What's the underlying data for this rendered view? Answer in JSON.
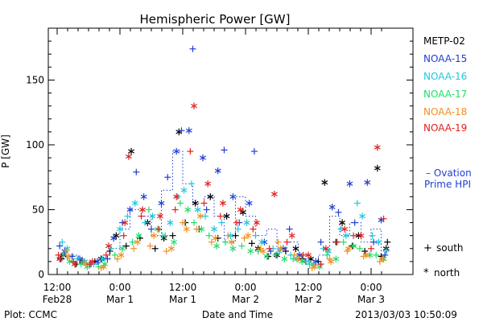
{
  "footer": {
    "left": "Plot: CCMC",
    "right": "2013/03/03 10:50:09"
  },
  "legend": {
    "ovation_line1": "– Ovation",
    "ovation_line2": "Prime HPI",
    "south_label": "south",
    "north_label": "north"
  },
  "chart_data": {
    "type": "scatter",
    "title": "Hemispheric Power [GW]",
    "xlabel": "Date and Time",
    "ylabel": "P [GW]",
    "ylim": [
      0,
      190
    ],
    "y_ticks": [
      0,
      50,
      100,
      150
    ],
    "xlim": [
      0,
      2.625
    ],
    "x_units": "days since 2013-02-28 12:00",
    "x_ticks": [
      {
        "x": 0.0,
        "time": "12:00",
        "date": "Feb28"
      },
      {
        "x": 0.5,
        "time": "0:00",
        "date": "Mar 1"
      },
      {
        "x": 1.0,
        "time": "12:00",
        "date": "Mar 1"
      },
      {
        "x": 1.5,
        "time": "0:00",
        "date": "Mar 2"
      },
      {
        "x": 2.0,
        "time": "12:00",
        "date": "Mar 2"
      },
      {
        "x": 2.5,
        "time": "0:00",
        "date": "Mar 3"
      }
    ],
    "legend_position": "right",
    "markers": {
      "south": "+",
      "north": "*"
    },
    "series": [
      {
        "name": "METP-02",
        "color": "#000000",
        "south": [
          [
            0.03,
            12
          ],
          [
            0.15,
            8
          ],
          [
            0.3,
            10
          ],
          [
            0.42,
            18
          ],
          [
            0.55,
            22
          ],
          [
            0.66,
            28
          ],
          [
            0.78,
            20
          ],
          [
            0.92,
            30
          ],
          [
            1.02,
            40
          ],
          [
            1.13,
            35
          ],
          [
            1.28,
            28
          ],
          [
            1.42,
            30
          ],
          [
            1.55,
            24
          ],
          [
            1.68,
            14
          ],
          [
            1.82,
            18
          ],
          [
            1.95,
            12
          ],
          [
            2.08,
            10
          ],
          [
            2.22,
            25
          ],
          [
            2.35,
            22
          ],
          [
            2.45,
            18
          ],
          [
            2.58,
            14
          ],
          [
            2.63,
            25
          ]
        ],
        "north": [
          [
            0.05,
            15
          ],
          [
            0.2,
            10
          ],
          [
            0.35,
            12
          ],
          [
            0.47,
            30
          ],
          [
            0.59,
            95
          ],
          [
            0.72,
            40
          ],
          [
            0.85,
            28
          ],
          [
            0.97,
            110
          ],
          [
            1.1,
            55
          ],
          [
            1.22,
            60
          ],
          [
            1.35,
            45
          ],
          [
            1.48,
            48
          ],
          [
            1.6,
            20
          ],
          [
            1.75,
            15
          ],
          [
            1.9,
            20
          ],
          [
            2.02,
            12
          ],
          [
            2.13,
            71
          ],
          [
            2.27,
            40
          ],
          [
            2.4,
            30
          ],
          [
            2.55,
            82
          ],
          [
            2.62,
            20
          ]
        ]
      },
      {
        "name": "NOAA-15",
        "color": "#1f3fd2",
        "south": [
          [
            0.02,
            22
          ],
          [
            0.12,
            14
          ],
          [
            0.27,
            8
          ],
          [
            0.4,
            12
          ],
          [
            0.52,
            40
          ],
          [
            0.63,
            79
          ],
          [
            0.75,
            35
          ],
          [
            0.88,
            75
          ],
          [
            0.99,
            111
          ],
          [
            1.08,
            174
          ],
          [
            1.19,
            50
          ],
          [
            1.33,
            96
          ],
          [
            1.45,
            40
          ],
          [
            1.57,
            95
          ],
          [
            1.7,
            18
          ],
          [
            1.85,
            35
          ],
          [
            1.98,
            10
          ],
          [
            2.1,
            25
          ],
          [
            2.24,
            48
          ],
          [
            2.37,
            40
          ],
          [
            2.52,
            25
          ],
          [
            2.61,
            15
          ]
        ],
        "north": [
          [
            0.06,
            18
          ],
          [
            0.18,
            12
          ],
          [
            0.32,
            10
          ],
          [
            0.45,
            28
          ],
          [
            0.58,
            50
          ],
          [
            0.69,
            60
          ],
          [
            0.83,
            55
          ],
          [
            0.95,
            95
          ],
          [
            1.05,
            111
          ],
          [
            1.16,
            90
          ],
          [
            1.28,
            80
          ],
          [
            1.4,
            60
          ],
          [
            1.53,
            55
          ],
          [
            1.65,
            25
          ],
          [
            1.8,
            20
          ],
          [
            1.93,
            15
          ],
          [
            2.06,
            10
          ],
          [
            2.19,
            52
          ],
          [
            2.33,
            70
          ],
          [
            2.47,
            71
          ],
          [
            2.58,
            42
          ]
        ]
      },
      {
        "name": "NOAA-16",
        "color": "#1fc8dc",
        "south": [
          [
            0.04,
            25
          ],
          [
            0.16,
            12
          ],
          [
            0.29,
            8
          ],
          [
            0.43,
            20
          ],
          [
            0.56,
            45
          ],
          [
            0.7,
            40
          ],
          [
            0.84,
            30
          ],
          [
            0.96,
            60
          ],
          [
            1.07,
            70
          ],
          [
            1.18,
            45
          ],
          [
            1.31,
            40
          ],
          [
            1.44,
            35
          ],
          [
            1.58,
            30
          ],
          [
            1.72,
            20
          ],
          [
            1.86,
            15
          ],
          [
            2.0,
            10
          ],
          [
            2.12,
            20
          ],
          [
            2.26,
            35
          ],
          [
            2.39,
            55
          ],
          [
            2.51,
            30
          ],
          [
            2.62,
            18
          ]
        ],
        "north": [
          [
            0.08,
            20
          ],
          [
            0.22,
            10
          ],
          [
            0.36,
            12
          ],
          [
            0.5,
            35
          ],
          [
            0.62,
            55
          ],
          [
            0.76,
            45
          ],
          [
            0.9,
            40
          ],
          [
            1.01,
            65
          ],
          [
            1.12,
            50
          ],
          [
            1.25,
            35
          ],
          [
            1.38,
            30
          ],
          [
            1.51,
            40
          ],
          [
            1.63,
            25
          ],
          [
            1.77,
            18
          ],
          [
            1.91,
            12
          ],
          [
            2.04,
            8
          ],
          [
            2.16,
            18
          ],
          [
            2.3,
            30
          ],
          [
            2.43,
            45
          ],
          [
            2.56,
            25
          ]
        ]
      },
      {
        "name": "NOAA-17",
        "color": "#22dd6a",
        "south": [
          [
            0.05,
            15
          ],
          [
            0.19,
            8
          ],
          [
            0.33,
            6
          ],
          [
            0.46,
            15
          ],
          [
            0.6,
            25
          ],
          [
            0.73,
            50
          ],
          [
            0.86,
            30
          ],
          [
            0.98,
            55
          ],
          [
            1.09,
            40
          ],
          [
            1.21,
            30
          ],
          [
            1.34,
            25
          ],
          [
            1.47,
            22
          ],
          [
            1.6,
            18
          ],
          [
            1.74,
            15
          ],
          [
            1.88,
            12
          ],
          [
            2.01,
            8
          ],
          [
            2.15,
            15
          ],
          [
            2.28,
            25
          ],
          [
            2.41,
            20
          ],
          [
            2.54,
            15
          ]
        ],
        "north": [
          [
            0.1,
            10
          ],
          [
            0.24,
            6
          ],
          [
            0.38,
            8
          ],
          [
            0.52,
            20
          ],
          [
            0.65,
            30
          ],
          [
            0.8,
            35
          ],
          [
            0.93,
            25
          ],
          [
            1.04,
            50
          ],
          [
            1.15,
            35
          ],
          [
            1.27,
            22
          ],
          [
            1.4,
            20
          ],
          [
            1.54,
            18
          ],
          [
            1.67,
            14
          ],
          [
            1.81,
            12
          ],
          [
            1.95,
            10
          ],
          [
            2.09,
            6
          ],
          [
            2.22,
            12
          ],
          [
            2.36,
            22
          ],
          [
            2.49,
            15
          ],
          [
            2.6,
            12
          ]
        ]
      },
      {
        "name": "NOAA-18",
        "color": "#f09020",
        "south": [
          [
            0.07,
            18
          ],
          [
            0.21,
            10
          ],
          [
            0.35,
            5
          ],
          [
            0.48,
            12
          ],
          [
            0.61,
            20
          ],
          [
            0.74,
            22
          ],
          [
            0.87,
            18
          ],
          [
            1.0,
            40
          ],
          [
            1.11,
            35
          ],
          [
            1.23,
            25
          ],
          [
            1.36,
            30
          ],
          [
            1.49,
            28
          ],
          [
            1.62,
            20
          ],
          [
            1.76,
            25
          ],
          [
            1.89,
            15
          ],
          [
            2.03,
            5
          ],
          [
            2.17,
            12
          ],
          [
            2.31,
            18
          ],
          [
            2.44,
            14
          ],
          [
            2.57,
            10
          ]
        ],
        "north": [
          [
            0.09,
            14
          ],
          [
            0.23,
            8
          ],
          [
            0.37,
            6
          ],
          [
            0.51,
            15
          ],
          [
            0.64,
            25
          ],
          [
            0.77,
            30
          ],
          [
            0.91,
            20
          ],
          [
            1.03,
            35
          ],
          [
            1.14,
            45
          ],
          [
            1.26,
            28
          ],
          [
            1.39,
            25
          ],
          [
            1.52,
            30
          ],
          [
            1.64,
            18
          ],
          [
            1.78,
            20
          ],
          [
            1.92,
            12
          ],
          [
            2.05,
            6
          ],
          [
            2.18,
            10
          ],
          [
            2.32,
            20
          ],
          [
            2.46,
            15
          ],
          [
            2.59,
            12
          ]
        ]
      },
      {
        "name": "NOAA-19",
        "color": "#e02020",
        "south": [
          [
            0.01,
            15
          ],
          [
            0.13,
            10
          ],
          [
            0.26,
            8
          ],
          [
            0.39,
            15
          ],
          [
            0.53,
            30
          ],
          [
            0.67,
            45
          ],
          [
            0.81,
            35
          ],
          [
            0.94,
            50
          ],
          [
            1.06,
            95
          ],
          [
            1.17,
            55
          ],
          [
            1.3,
            45
          ],
          [
            1.43,
            40
          ],
          [
            1.56,
            35
          ],
          [
            1.69,
            20
          ],
          [
            1.83,
            25
          ],
          [
            1.96,
            15
          ],
          [
            2.1,
            8
          ],
          [
            2.23,
            25
          ],
          [
            2.36,
            30
          ],
          [
            2.5,
            20
          ],
          [
            2.6,
            43
          ]
        ],
        "north": [
          [
            0.02,
            12
          ],
          [
            0.14,
            8
          ],
          [
            0.28,
            10
          ],
          [
            0.41,
            22
          ],
          [
            0.54,
            40
          ],
          [
            0.57,
            91
          ],
          [
            0.68,
            50
          ],
          [
            0.82,
            45
          ],
          [
            0.95,
            60
          ],
          [
            1.09,
            130
          ],
          [
            1.2,
            70
          ],
          [
            1.32,
            55
          ],
          [
            1.46,
            50
          ],
          [
            1.59,
            40
          ],
          [
            1.73,
            62
          ],
          [
            1.87,
            30
          ],
          [
            2.0,
            15
          ],
          [
            2.14,
            20
          ],
          [
            2.29,
            35
          ],
          [
            2.42,
            30
          ],
          [
            2.55,
            98
          ]
        ]
      }
    ],
    "ovation": {
      "name": "Ovation Prime HPI",
      "color": "#1f3fd2",
      "style": "dotted-step",
      "steps": [
        [
          0.0,
          12
        ],
        [
          0.08,
          15
        ],
        [
          0.17,
          10
        ],
        [
          0.25,
          8
        ],
        [
          0.33,
          12
        ],
        [
          0.42,
          20
        ],
        [
          0.5,
          35
        ],
        [
          0.58,
          50
        ],
        [
          0.67,
          45
        ],
        [
          0.75,
          30
        ],
        [
          0.83,
          65
        ],
        [
          0.92,
          95
        ],
        [
          1.0,
          70
        ],
        [
          1.08,
          55
        ],
        [
          1.17,
          60
        ],
        [
          1.25,
          45
        ],
        [
          1.33,
          25
        ],
        [
          1.42,
          60
        ],
        [
          1.5,
          45
        ],
        [
          1.58,
          30
        ],
        [
          1.67,
          35
        ],
        [
          1.75,
          20
        ],
        [
          1.83,
          25
        ],
        [
          1.92,
          12
        ],
        [
          2.0,
          10
        ],
        [
          2.08,
          15
        ],
        [
          2.17,
          45
        ],
        [
          2.25,
          30
        ],
        [
          2.33,
          40
        ],
        [
          2.42,
          25
        ],
        [
          2.5,
          35
        ],
        [
          2.58,
          15
        ],
        [
          2.625,
          20
        ]
      ]
    }
  }
}
